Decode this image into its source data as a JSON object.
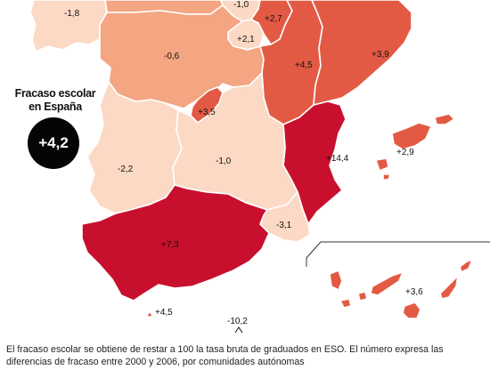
{
  "national": {
    "title_line1": "Fracaso escolar",
    "title_line2": "en España",
    "value": "+4,2"
  },
  "colors": {
    "strong_increase": "#c8102e",
    "increase": "#e35a44",
    "slight_decrease": "#f4a582",
    "decrease": "#fcd9c4",
    "badge": "#050505"
  },
  "regions": {
    "galicia_edge": {
      "value": "-1,8"
    },
    "cantabria_pv_edge": {
      "value": "-1,0"
    },
    "navarra": {
      "value": "+2,7"
    },
    "la_rioja": {
      "value": "+2,1"
    },
    "castilla_y_leon": {
      "value": "-0,6"
    },
    "aragon": {
      "value": "+4,5"
    },
    "cataluna": {
      "value": "+3,9"
    },
    "madrid": {
      "value": "+3,5"
    },
    "comunidad_valenciana": {
      "value": "+14,4"
    },
    "baleares": {
      "value": "+2,9"
    },
    "extremadura": {
      "value": "-2,2"
    },
    "castilla_la_mancha": {
      "value": "-1,0"
    },
    "murcia": {
      "value": "-3,1"
    },
    "andalucia": {
      "value": "+7,3"
    },
    "canarias": {
      "value": "+3,6"
    },
    "ceuta": {
      "value": "+4,5"
    },
    "melilla": {
      "value": "-10,2"
    }
  },
  "footnote": {
    "line1": "El fracaso escolar se obtiene de restar a 100 la tasa bruta de graduados en ESO. El número expresa las",
    "line2": "diferencias de fracaso entre 2000 y 2006, por comunidades autónomas"
  }
}
